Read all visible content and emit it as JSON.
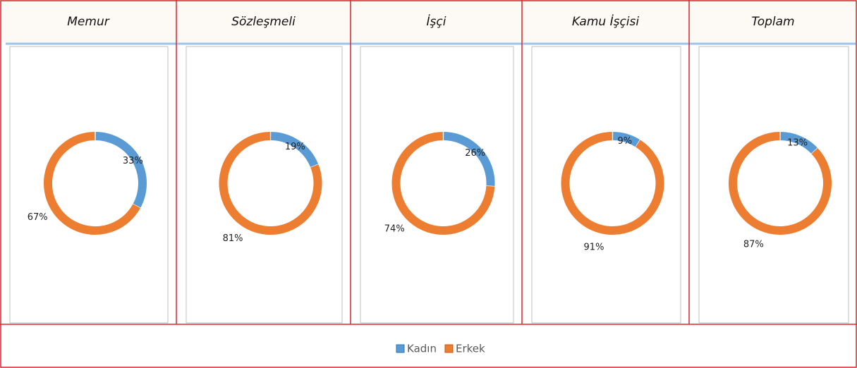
{
  "chart_data": [
    {
      "type": "donut",
      "title": "Memur",
      "values": [
        33,
        67
      ],
      "value_labels": [
        "33%",
        "67%"
      ]
    },
    {
      "type": "donut",
      "title": "Sözleşmeli",
      "values": [
        19,
        81
      ],
      "value_labels": [
        "19%",
        "81%"
      ]
    },
    {
      "type": "donut",
      "title": "İşçi",
      "values": [
        26,
        74
      ],
      "value_labels": [
        "26%",
        "74%"
      ]
    },
    {
      "type": "donut",
      "title": "Kamu İşçisi",
      "values": [
        9,
        91
      ],
      "value_labels": [
        "9%",
        "91%"
      ]
    },
    {
      "type": "donut",
      "title": "Toplam",
      "values": [
        13,
        87
      ],
      "value_labels": [
        "13%",
        "87%"
      ]
    }
  ],
  "legend": {
    "categories": [
      "Kadın",
      "Erkek"
    ],
    "colors": [
      "#5b9bd5",
      "#ed7d31"
    ]
  }
}
